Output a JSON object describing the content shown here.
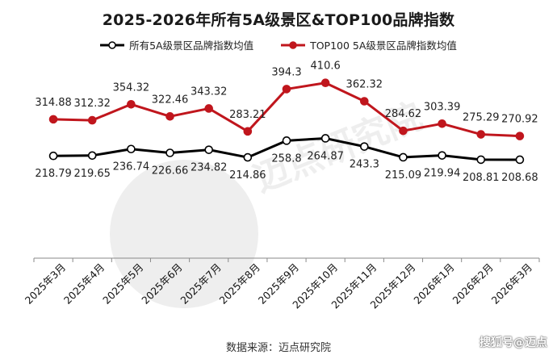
{
  "chart_data": {
    "type": "line",
    "title": "2025-2026年所有5A级景区&TOP100品牌指数",
    "categories": [
      "2025年3月",
      "2025年4月",
      "2025年5月",
      "2025年6月",
      "2025年7月",
      "2025年8月",
      "2025年9月",
      "2025年10月",
      "2025年11月",
      "2025年12月",
      "2026年1月",
      "2026年2月",
      "2026年3月"
    ],
    "series": [
      {
        "name": "所有5A级景区品牌指数均值",
        "color": "#000000",
        "values": [
          218.79,
          219.65,
          236.74,
          226.66,
          234.82,
          214.86,
          258.8,
          264.87,
          243.3,
          215.09,
          219.94,
          208.81,
          208.68
        ]
      },
      {
        "name": "TOP100 5A级景区品牌指数均值",
        "color": "#c0161d",
        "values": [
          314.88,
          312.32,
          354.32,
          322.46,
          343.32,
          283.21,
          394.3,
          410.6,
          362.32,
          284.62,
          303.39,
          275.29,
          270.92
        ]
      }
    ],
    "ylim": [
      -50,
      480
    ],
    "grid": false,
    "legend": "top-center"
  },
  "source": "数据来源：迈点研究院",
  "credit": "搜狐号@迈点"
}
